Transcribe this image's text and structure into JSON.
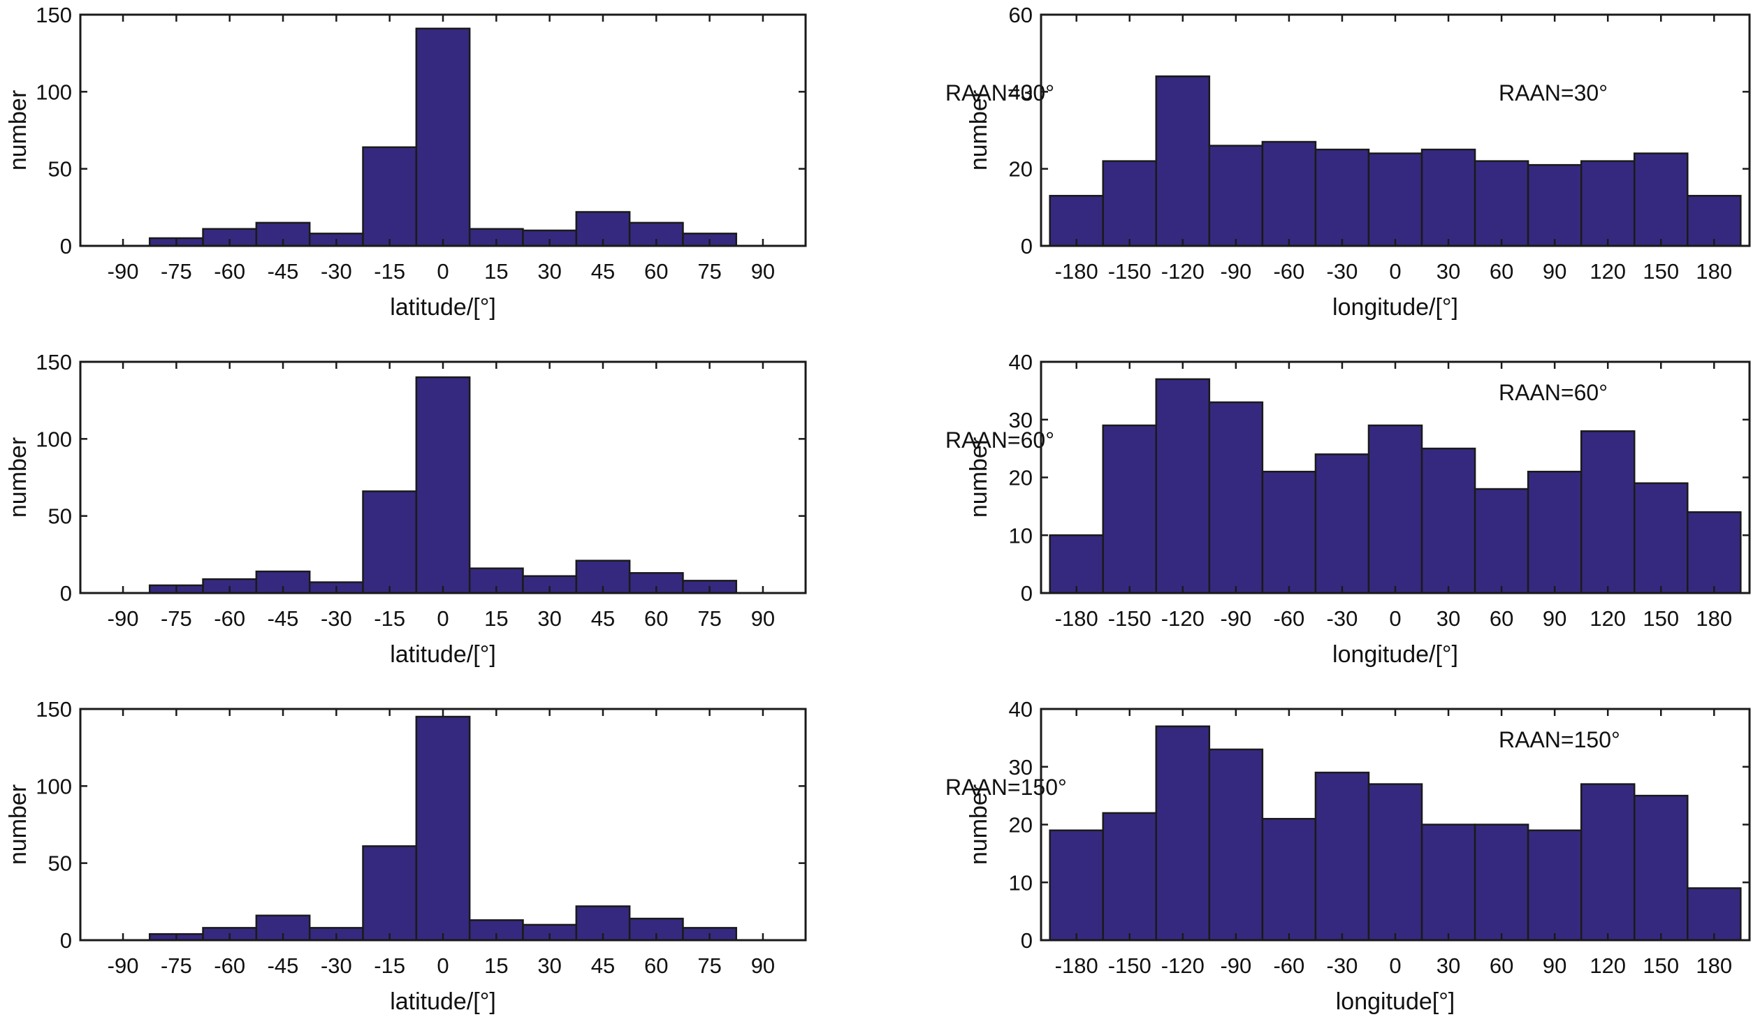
{
  "figure": {
    "bar_color": "#35297f",
    "edge_color": "#1a1a1a",
    "axis_color": "#1a1a1a"
  },
  "chart_data": [
    {
      "type": "bar",
      "ylabel": "number",
      "xlabel": "latitude/[°]",
      "annotation": "RAAN=30°",
      "ylim": [
        0,
        150
      ],
      "yticks": [
        0,
        50,
        100,
        150
      ],
      "xlim": [
        -102,
        102
      ],
      "xticks": [
        -90,
        -75,
        -60,
        -45,
        -30,
        -15,
        0,
        15,
        30,
        45,
        60,
        75,
        90
      ],
      "bin_edges": [
        -82.5,
        -67.5,
        -52.5,
        -37.5,
        -22.5,
        -7.5,
        7.5,
        22.5,
        37.5,
        52.5,
        67.5,
        82.5
      ],
      "values": [
        5,
        11,
        15,
        8,
        64,
        141,
        11,
        10,
        22,
        15,
        8
      ]
    },
    {
      "type": "bar",
      "ylabel": "number",
      "xlabel": "longitude/[°]",
      "annotation": "RAAN=30°",
      "ylim": [
        0,
        60
      ],
      "yticks": [
        0,
        20,
        40,
        60
      ],
      "xlim": [
        -200,
        200
      ],
      "xticks": [
        -180,
        -150,
        -120,
        -90,
        -60,
        -30,
        0,
        30,
        60,
        90,
        120,
        150,
        180
      ],
      "bin_edges": [
        -195,
        -165,
        -135,
        -105,
        -75,
        -45,
        -15,
        15,
        45,
        75,
        105,
        135,
        165,
        195
      ],
      "values": [
        13,
        22,
        44,
        26,
        27,
        25,
        24,
        25,
        22,
        21,
        22,
        24,
        13
      ]
    },
    {
      "type": "bar",
      "ylabel": "number",
      "xlabel": "latitude/[°]",
      "annotation": "RAAN=60°",
      "ylim": [
        0,
        150
      ],
      "yticks": [
        0,
        50,
        100,
        150
      ],
      "xlim": [
        -102,
        102
      ],
      "xticks": [
        -90,
        -75,
        -60,
        -45,
        -30,
        -15,
        0,
        15,
        30,
        45,
        60,
        75,
        90
      ],
      "bin_edges": [
        -82.5,
        -67.5,
        -52.5,
        -37.5,
        -22.5,
        -7.5,
        7.5,
        22.5,
        37.5,
        52.5,
        67.5,
        82.5
      ],
      "values": [
        5,
        9,
        14,
        7,
        66,
        140,
        16,
        11,
        21,
        13,
        8
      ]
    },
    {
      "type": "bar",
      "ylabel": "number",
      "xlabel": "longitude/[°]",
      "annotation": "RAAN=60°",
      "ylim": [
        0,
        40
      ],
      "yticks": [
        0,
        10,
        20,
        30,
        40
      ],
      "xlim": [
        -200,
        200
      ],
      "xticks": [
        -180,
        -150,
        -120,
        -90,
        -60,
        -30,
        0,
        30,
        60,
        90,
        120,
        150,
        180
      ],
      "bin_edges": [
        -195,
        -165,
        -135,
        -105,
        -75,
        -45,
        -15,
        15,
        45,
        75,
        105,
        135,
        165,
        195
      ],
      "values": [
        10,
        29,
        37,
        33,
        21,
        24,
        29,
        25,
        18,
        21,
        28,
        19,
        14
      ]
    },
    {
      "type": "bar",
      "ylabel": "number",
      "xlabel": "latitude/[°]",
      "annotation": "RAAN=150°",
      "ylim": [
        0,
        150
      ],
      "yticks": [
        0,
        50,
        100,
        150
      ],
      "xlim": [
        -102,
        102
      ],
      "xticks": [
        -90,
        -75,
        -60,
        -45,
        -30,
        -15,
        0,
        15,
        30,
        45,
        60,
        75,
        90
      ],
      "bin_edges": [
        -82.5,
        -67.5,
        -52.5,
        -37.5,
        -22.5,
        -7.5,
        7.5,
        22.5,
        37.5,
        52.5,
        67.5,
        82.5
      ],
      "values": [
        4,
        8,
        16,
        8,
        61,
        145,
        13,
        10,
        22,
        14,
        8
      ]
    },
    {
      "type": "bar",
      "ylabel": "number",
      "xlabel": "longitude[°]",
      "annotation": "RAAN=150°",
      "ylim": [
        0,
        40
      ],
      "yticks": [
        0,
        10,
        20,
        30,
        40
      ],
      "xlim": [
        -200,
        200
      ],
      "xticks": [
        -180,
        -150,
        -120,
        -90,
        -60,
        -30,
        0,
        30,
        60,
        90,
        120,
        150,
        180
      ],
      "bin_edges": [
        -195,
        -165,
        -135,
        -105,
        -75,
        -45,
        -15,
        15,
        45,
        75,
        105,
        135,
        165,
        195
      ],
      "values": [
        19,
        22,
        37,
        33,
        21,
        29,
        27,
        20,
        20,
        19,
        27,
        25,
        9
      ]
    }
  ]
}
